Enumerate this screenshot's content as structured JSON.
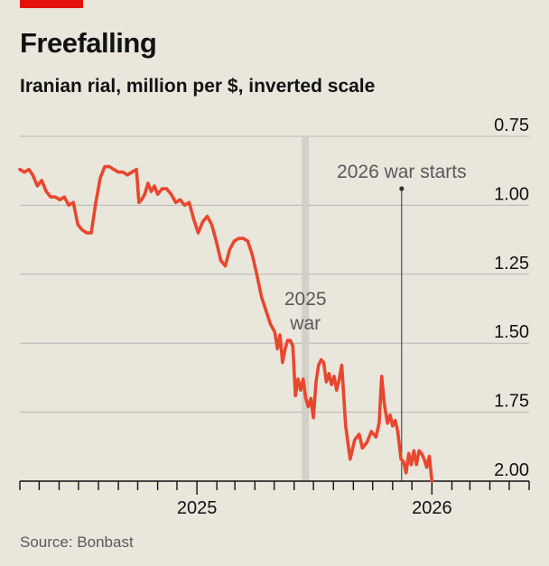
{
  "header": {
    "title": "Freefalling",
    "subtitle": "Iranian rial, million per $, inverted scale",
    "source": "Source: Bonbast"
  },
  "colors": {
    "background": "#e9e6dc",
    "line": "#e8472f",
    "grid": "#b7b7b0",
    "band": "#d2d0c7",
    "accent": "#e3120b"
  },
  "chart_data": {
    "type": "line",
    "title": "Freefalling",
    "subtitle": "Iranian rial, million per $, inverted scale",
    "xlabel": "",
    "ylabel": "",
    "inverted_y": true,
    "ylim": [
      0.75,
      2.0
    ],
    "yticks": [
      0.75,
      1.0,
      1.25,
      1.5,
      1.75,
      2.0
    ],
    "ytick_labels": [
      "0.75",
      "1.00",
      "1.25",
      "1.50",
      "1.75",
      "2.00"
    ],
    "xlim": [
      "2024-04-01",
      "2026-06-01"
    ],
    "xtick_labels": [
      {
        "label": "2025",
        "date": "2025-01-01"
      },
      {
        "label": "2026",
        "date": "2026-01-01"
      }
    ],
    "grid": true,
    "annotations": [
      {
        "id": "war-2025",
        "text_lines": [
          "2025",
          "war"
        ],
        "start": "2025-06-13",
        "end": "2025-06-24",
        "kind": "band"
      },
      {
        "id": "war-2026",
        "text": "2026 war starts",
        "date": "2025-11-15",
        "kind": "line"
      }
    ],
    "series": [
      {
        "points": [
          [
            "2024-04-01",
            0.87
          ],
          [
            "2024-04-08",
            0.88
          ],
          [
            "2024-04-15",
            0.87
          ],
          [
            "2024-04-21",
            0.89
          ],
          [
            "2024-04-28",
            0.93
          ],
          [
            "2024-05-05",
            0.91
          ],
          [
            "2024-05-12",
            0.95
          ],
          [
            "2024-05-19",
            0.97
          ],
          [
            "2024-05-26",
            0.97
          ],
          [
            "2024-06-02",
            0.98
          ],
          [
            "2024-06-09",
            0.97
          ],
          [
            "2024-06-16",
            1.0
          ],
          [
            "2024-06-23",
            0.99
          ],
          [
            "2024-06-30",
            1.07
          ],
          [
            "2024-07-07",
            1.09
          ],
          [
            "2024-07-14",
            1.1
          ],
          [
            "2024-07-21",
            1.1
          ],
          [
            "2024-07-28",
            0.99
          ],
          [
            "2024-08-04",
            0.9
          ],
          [
            "2024-08-11",
            0.86
          ],
          [
            "2024-08-18",
            0.86
          ],
          [
            "2024-08-25",
            0.87
          ],
          [
            "2024-09-01",
            0.88
          ],
          [
            "2024-09-08",
            0.88
          ],
          [
            "2024-09-15",
            0.89
          ],
          [
            "2024-09-22",
            0.88
          ],
          [
            "2024-09-29",
            0.87
          ],
          [
            "2024-10-03",
            0.99
          ],
          [
            "2024-10-07",
            0.98
          ],
          [
            "2024-10-12",
            0.96
          ],
          [
            "2024-10-17",
            0.92
          ],
          [
            "2024-10-22",
            0.95
          ],
          [
            "2024-10-27",
            0.93
          ],
          [
            "2024-11-01",
            0.96
          ],
          [
            "2024-11-08",
            0.94
          ],
          [
            "2024-11-15",
            0.94
          ],
          [
            "2024-11-22",
            0.96
          ],
          [
            "2024-11-29",
            0.99
          ],
          [
            "2024-12-06",
            0.98
          ],
          [
            "2024-12-13",
            1.0
          ],
          [
            "2024-12-20",
            0.99
          ],
          [
            "2024-12-27",
            1.05
          ],
          [
            "2025-01-03",
            1.1
          ],
          [
            "2025-01-10",
            1.06
          ],
          [
            "2025-01-17",
            1.04
          ],
          [
            "2025-01-24",
            1.07
          ],
          [
            "2025-01-31",
            1.13
          ],
          [
            "2025-02-07",
            1.2
          ],
          [
            "2025-02-14",
            1.22
          ],
          [
            "2025-02-21",
            1.16
          ],
          [
            "2025-02-28",
            1.13
          ],
          [
            "2025-03-07",
            1.12
          ],
          [
            "2025-03-14",
            1.12
          ],
          [
            "2025-03-21",
            1.13
          ],
          [
            "2025-03-28",
            1.18
          ],
          [
            "2025-04-04",
            1.25
          ],
          [
            "2025-04-11",
            1.33
          ],
          [
            "2025-04-18",
            1.38
          ],
          [
            "2025-04-25",
            1.43
          ],
          [
            "2025-05-02",
            1.46
          ],
          [
            "2025-05-06",
            1.52
          ],
          [
            "2025-05-10",
            1.47
          ],
          [
            "2025-05-14",
            1.57
          ],
          [
            "2025-05-18",
            1.52
          ],
          [
            "2025-05-22",
            1.49
          ],
          [
            "2025-05-26",
            1.49
          ],
          [
            "2025-05-30",
            1.51
          ],
          [
            "2025-06-03",
            1.69
          ],
          [
            "2025-06-07",
            1.63
          ],
          [
            "2025-06-11",
            1.67
          ],
          [
            "2025-06-15",
            1.63
          ],
          [
            "2025-06-19",
            1.7
          ],
          [
            "2025-06-23",
            1.73
          ],
          [
            "2025-06-27",
            1.7
          ],
          [
            "2025-07-01",
            1.77
          ],
          [
            "2025-07-05",
            1.64
          ],
          [
            "2025-07-09",
            1.58
          ],
          [
            "2025-07-13",
            1.56
          ],
          [
            "2025-07-17",
            1.57
          ],
          [
            "2025-07-21",
            1.64
          ],
          [
            "2025-07-25",
            1.61
          ],
          [
            "2025-07-29",
            1.65
          ],
          [
            "2025-08-02",
            1.62
          ],
          [
            "2025-08-06",
            1.67
          ],
          [
            "2025-08-10",
            1.63
          ],
          [
            "2025-08-14",
            1.58
          ],
          [
            "2025-08-20",
            1.8
          ],
          [
            "2025-08-27",
            1.92
          ],
          [
            "2025-09-03",
            1.85
          ],
          [
            "2025-09-10",
            1.83
          ],
          [
            "2025-09-15",
            1.88
          ],
          [
            "2025-09-22",
            1.86
          ],
          [
            "2025-09-29",
            1.82
          ],
          [
            "2025-10-06",
            1.84
          ],
          [
            "2025-10-11",
            1.79
          ],
          [
            "2025-10-15",
            1.62
          ],
          [
            "2025-10-19",
            1.72
          ],
          [
            "2025-10-24",
            1.79
          ],
          [
            "2025-10-28",
            1.76
          ],
          [
            "2025-11-01",
            1.8
          ],
          [
            "2025-11-05",
            1.78
          ],
          [
            "2025-11-09",
            1.82
          ],
          [
            "2025-11-14",
            1.92
          ],
          [
            "2025-11-18",
            1.93
          ],
          [
            "2025-11-22",
            1.97
          ],
          [
            "2025-11-26",
            1.9
          ],
          [
            "2025-11-30",
            1.94
          ],
          [
            "2025-12-04",
            1.89
          ],
          [
            "2025-12-08",
            1.94
          ],
          [
            "2025-12-12",
            1.89
          ],
          [
            "2025-12-16",
            1.9
          ],
          [
            "2025-12-20",
            1.92
          ],
          [
            "2025-12-24",
            1.95
          ],
          [
            "2025-12-28",
            1.91
          ],
          [
            "2026-01-01",
            2.0
          ]
        ]
      }
    ]
  }
}
